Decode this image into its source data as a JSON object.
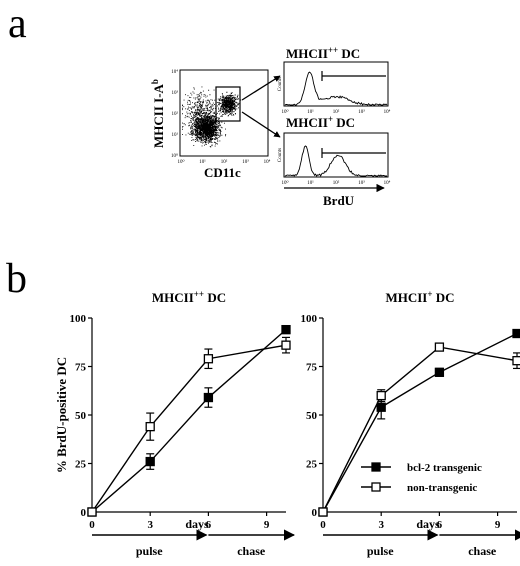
{
  "figure": {
    "panel_a_letter": "a",
    "panel_b_letter": "b"
  },
  "panel_a": {
    "dotplot_ylabel": "MHCII I-A",
    "dotplot_ylabel_sup": "b",
    "dotplot_xlabel": "CD11c",
    "hist_top_title": "MHCII",
    "hist_top_sup": "++",
    "hist_top_suffix": " DC",
    "hist_bottom_title": "MHCII",
    "hist_bottom_sup": "+",
    "hist_bottom_suffix": " DC",
    "hist_xlabel": "BrdU",
    "hist_ylabel": "Counts",
    "decade_ticks": [
      "10⁰",
      "10¹",
      "10²",
      "10³",
      "10⁴"
    ]
  },
  "chart_data": [
    {
      "type": "line",
      "title": "MHCII",
      "title_sup": "++",
      "title_suffix": " DC",
      "ylabel": "% BrdU-positive DC",
      "xlabel": "days",
      "x_ticks": [
        0,
        3,
        6,
        9
      ],
      "y_ticks": [
        0,
        25,
        50,
        75,
        100
      ],
      "xlim": [
        0,
        10
      ],
      "ylim": [
        0,
        100
      ],
      "phases": [
        {
          "label": "pulse",
          "start": 0,
          "end": 6
        },
        {
          "label": "chase",
          "start": 6,
          "end": 10
        }
      ],
      "series": [
        {
          "marker": "filled-square",
          "points": [
            {
              "x": 0,
              "y": 0,
              "err": 0
            },
            {
              "x": 3,
              "y": 26,
              "err": 4
            },
            {
              "x": 6,
              "y": 59,
              "err": 5
            },
            {
              "x": 10,
              "y": 94,
              "err": 2
            }
          ]
        },
        {
          "marker": "open-square",
          "points": [
            {
              "x": 0,
              "y": 0,
              "err": 0
            },
            {
              "x": 3,
              "y": 44,
              "err": 7
            },
            {
              "x": 6,
              "y": 79,
              "err": 5
            },
            {
              "x": 10,
              "y": 86,
              "err": 4
            }
          ]
        }
      ]
    },
    {
      "type": "line",
      "title": "MHCII",
      "title_sup": "+",
      "title_suffix": " DC",
      "ylabel": "",
      "xlabel": "days",
      "x_ticks": [
        0,
        3,
        6,
        9
      ],
      "y_ticks": [
        0,
        25,
        50,
        75,
        100
      ],
      "xlim": [
        0,
        10
      ],
      "ylim": [
        0,
        100
      ],
      "legend_position": "lower-right",
      "phases": [
        {
          "label": "pulse",
          "start": 0,
          "end": 6
        },
        {
          "label": "chase",
          "start": 6,
          "end": 10
        }
      ],
      "series": [
        {
          "name": "bcl-2 transgenic",
          "marker": "filled-square",
          "points": [
            {
              "x": 0,
              "y": 0,
              "err": 0
            },
            {
              "x": 3,
              "y": 54,
              "err": 6
            },
            {
              "x": 6,
              "y": 72,
              "err": 2
            },
            {
              "x": 10,
              "y": 92,
              "err": 2
            }
          ]
        },
        {
          "name": "non-transgenic",
          "marker": "open-square",
          "points": [
            {
              "x": 0,
              "y": 0,
              "err": 0
            },
            {
              "x": 3,
              "y": 60,
              "err": 3
            },
            {
              "x": 6,
              "y": 85,
              "err": 1
            },
            {
              "x": 10,
              "y": 78,
              "err": 4
            }
          ]
        }
      ]
    }
  ]
}
